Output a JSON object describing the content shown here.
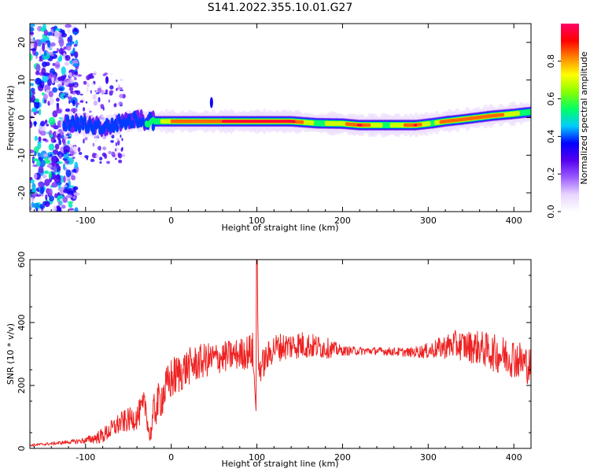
{
  "title": "S141.2022.355.10.01.G27",
  "chart_data": [
    {
      "type": "heatmap",
      "xlabel": "Height of straight line (km)",
      "ylabel": "Frequency (Hz)",
      "xlim": [
        -165,
        420
      ],
      "ylim": [
        -25,
        25
      ],
      "x_ticks": [
        -100,
        0,
        100,
        200,
        300,
        400
      ],
      "y_ticks": [
        -20,
        -10,
        0,
        10,
        20
      ],
      "colorbar": {
        "label": "Normalized spectral amplitude",
        "range": [
          0,
          1
        ],
        "ticks": [
          0.0,
          0.2,
          0.4,
          0.6,
          0.8
        ],
        "tick_labels": [
          "0.0",
          "0.2",
          "0.4",
          "0.6",
          "0.8"
        ],
        "colormap": [
          "#ffffff",
          "#e8d5ff",
          "#9b5cff",
          "#5500ee",
          "#0000ff",
          "#00ccff",
          "#00ff66",
          "#88ff00",
          "#ffff00",
          "#ff8800",
          "#ff0000",
          "#ff0066"
        ]
      },
      "ridge": [
        {
          "x": -120,
          "f": -1.5,
          "a": 0.45
        },
        {
          "x": -80,
          "f": -2.5,
          "a": 0.5
        },
        {
          "x": -40,
          "f": -0.5,
          "a": 0.45
        },
        {
          "x": -20,
          "f": -1.0,
          "a": 0.55
        },
        {
          "x": 0,
          "f": -1.0,
          "a": 0.8
        },
        {
          "x": 20,
          "f": -1.0,
          "a": 0.92
        },
        {
          "x": 45,
          "f": -1.0,
          "a": 0.85
        },
        {
          "x": 70,
          "f": -1.0,
          "a": 0.97
        },
        {
          "x": 100,
          "f": -1.0,
          "a": 0.99
        },
        {
          "x": 140,
          "f": -1.0,
          "a": 0.96
        },
        {
          "x": 170,
          "f": -1.5,
          "a": 0.6
        },
        {
          "x": 200,
          "f": -1.6,
          "a": 0.75
        },
        {
          "x": 220,
          "f": -2.0,
          "a": 0.95
        },
        {
          "x": 250,
          "f": -2.0,
          "a": 0.6
        },
        {
          "x": 285,
          "f": -2.0,
          "a": 0.92
        },
        {
          "x": 305,
          "f": -1.5,
          "a": 0.6
        },
        {
          "x": 320,
          "f": -1.0,
          "a": 0.92
        },
        {
          "x": 340,
          "f": -0.5,
          "a": 0.85
        },
        {
          "x": 375,
          "f": 0.5,
          "a": 0.9
        },
        {
          "x": 400,
          "f": 1.0,
          "a": 0.7
        },
        {
          "x": 420,
          "f": 1.5,
          "a": 0.55
        }
      ]
    },
    {
      "type": "line",
      "xlabel": "Height of straight line (km)",
      "ylabel": "SNR (10 * v/v)",
      "xlim": [
        -165,
        420
      ],
      "ylim": [
        0,
        600
      ],
      "x_ticks": [
        -100,
        0,
        100,
        200,
        300,
        400
      ],
      "y_ticks": [
        0,
        200,
        400,
        600
      ],
      "color": "#ee2222",
      "series": [
        {
          "x": [
            -165,
            -140,
            -120,
            -100,
            -80,
            -60,
            -40,
            -30,
            -25,
            -20,
            0,
            20,
            40,
            60,
            80,
            95,
            99,
            100,
            102,
            120,
            150,
            180,
            200,
            240,
            280,
            300,
            330,
            360,
            380,
            400,
            420
          ],
          "y": [
            10,
            15,
            20,
            25,
            40,
            80,
            100,
            140,
            30,
            120,
            220,
            260,
            280,
            290,
            300,
            310,
            120,
            600,
            250,
            320,
            330,
            320,
            310,
            310,
            305,
            310,
            330,
            320,
            300,
            290,
            260
          ],
          "noise": [
            4,
            5,
            6,
            10,
            25,
            35,
            40,
            50,
            20,
            60,
            70,
            60,
            55,
            50,
            50,
            60,
            40,
            40,
            50,
            45,
            45,
            35,
            15,
            12,
            15,
            25,
            45,
            55,
            60,
            65,
            60
          ]
        }
      ]
    }
  ]
}
